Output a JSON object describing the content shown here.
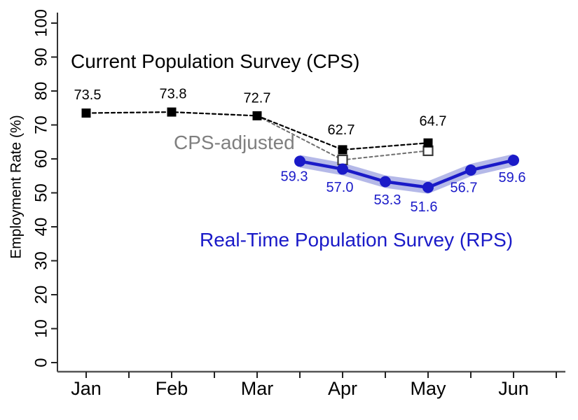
{
  "chart_data": {
    "type": "line",
    "title": "",
    "xlabel": "",
    "ylabel": "Employment Rate (%)",
    "x_categories": [
      "Jan",
      "Feb",
      "Mar",
      "Apr",
      "May",
      "Jun"
    ],
    "ylim": [
      0,
      100
    ],
    "y_ticks": [
      0,
      10,
      20,
      30,
      40,
      50,
      60,
      70,
      80,
      90,
      100
    ],
    "grid": false,
    "legend_position": "none (inline text annotations)",
    "series": [
      {
        "name": "Current Population Survey (CPS)",
        "color": "#000000",
        "line_style": "dashed",
        "marker": "filled-square",
        "x_months": [
          1,
          2,
          3,
          4,
          5
        ],
        "values": [
          73.5,
          73.8,
          72.7,
          62.7,
          64.7
        ],
        "point_labels": [
          "73.5",
          "73.8",
          "72.7",
          "62.7",
          "64.7"
        ],
        "label_offsets": [
          [
            2,
            -25
          ],
          [
            2,
            -25
          ],
          [
            0,
            -24
          ],
          [
            -2,
            -27
          ],
          [
            7,
            -30
          ]
        ],
        "marker_indices": [
          0,
          1,
          2,
          3,
          4
        ]
      },
      {
        "name": "CPS-adjusted",
        "color": "#7f7f7f",
        "line_color": "#6e6e6e",
        "marker_color": "#3a3a3a",
        "line_style": "dashed",
        "marker": "open-square",
        "x_months": [
          3,
          4,
          5
        ],
        "values": [
          72.7,
          59.7,
          62.4
        ],
        "point_labels": [
          "",
          "",
          ""
        ],
        "label_offsets": [
          [
            0,
            0
          ],
          [
            0,
            0
          ],
          [
            0,
            0
          ]
        ],
        "marker_indices": [
          1,
          2
        ]
      },
      {
        "name": "Real-Time Population Survey (RPS)",
        "color": "#1a1ac8",
        "line_style": "solid",
        "marker": "filled-circle",
        "band_color": "#b1b5e7",
        "band_halfwidth_value": 1.85,
        "x_months": [
          3.5,
          4,
          4.5,
          5,
          5.5,
          6
        ],
        "values": [
          59.3,
          57.0,
          53.3,
          51.6,
          56.7,
          59.6
        ],
        "point_labels": [
          "59.3",
          "57.0",
          "53.3",
          "51.6",
          "56.7",
          "59.6"
        ],
        "label_offsets": [
          [
            -8,
            23
          ],
          [
            -4,
            27
          ],
          [
            3,
            27
          ],
          [
            -6,
            29
          ],
          [
            -10,
            26
          ],
          [
            -2,
            26
          ]
        ],
        "marker_indices": [
          0,
          1,
          2,
          3,
          4,
          5
        ]
      }
    ],
    "annotations": {
      "cps": {
        "text": "Current Population Survey (CPS)",
        "color": "#000000"
      },
      "cps_adjusted": {
        "text": "CPS-adjusted",
        "color": "#7f7f7f"
      },
      "rps": {
        "text": "Real-Time Population Survey (RPS)",
        "color": "#1a1ac8"
      }
    }
  }
}
